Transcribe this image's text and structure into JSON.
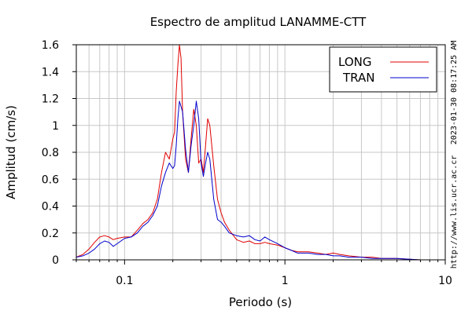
{
  "chart_data": {
    "type": "line",
    "title": "Espectro de amplitud LANAMME-CTT",
    "xlabel": "Periodo (s)",
    "ylabel": "Amplitud (cm/s)",
    "x_scale": "log",
    "xlim": [
      0.05,
      10
    ],
    "ylim": [
      0,
      1.6
    ],
    "grid": true,
    "legend_position": "top-right",
    "x_ticks": [
      {
        "value": 0.1,
        "label": "0.1"
      },
      {
        "value": 1,
        "label": "1"
      },
      {
        "value": 10,
        "label": "10"
      }
    ],
    "y_ticks": [
      {
        "value": 0,
        "label": "0"
      },
      {
        "value": 0.2,
        "label": "0.2"
      },
      {
        "value": 0.4,
        "label": "0.4"
      },
      {
        "value": 0.6,
        "label": "0.6"
      },
      {
        "value": 0.8,
        "label": "0.8"
      },
      {
        "value": 1.0,
        "label": "1"
      },
      {
        "value": 1.2,
        "label": "1.2"
      },
      {
        "value": 1.4,
        "label": "1.4"
      },
      {
        "value": 1.6,
        "label": "1.6"
      }
    ],
    "series": [
      {
        "name": "LONG",
        "color": "#e00000",
        "points": [
          [
            0.05,
            0.02
          ],
          [
            0.055,
            0.04
          ],
          [
            0.06,
            0.08
          ],
          [
            0.065,
            0.13
          ],
          [
            0.07,
            0.17
          ],
          [
            0.075,
            0.18
          ],
          [
            0.08,
            0.17
          ],
          [
            0.085,
            0.15
          ],
          [
            0.09,
            0.16
          ],
          [
            0.1,
            0.17
          ],
          [
            0.11,
            0.17
          ],
          [
            0.12,
            0.22
          ],
          [
            0.13,
            0.27
          ],
          [
            0.14,
            0.3
          ],
          [
            0.15,
            0.35
          ],
          [
            0.16,
            0.45
          ],
          [
            0.17,
            0.65
          ],
          [
            0.18,
            0.8
          ],
          [
            0.19,
            0.75
          ],
          [
            0.2,
            0.9
          ],
          [
            0.205,
            0.95
          ],
          [
            0.21,
            1.25
          ],
          [
            0.215,
            1.45
          ],
          [
            0.22,
            1.6
          ],
          [
            0.225,
            1.5
          ],
          [
            0.23,
            1.1
          ],
          [
            0.24,
            0.75
          ],
          [
            0.25,
            0.65
          ],
          [
            0.26,
            0.9
          ],
          [
            0.27,
            1.12
          ],
          [
            0.28,
            1.0
          ],
          [
            0.29,
            0.72
          ],
          [
            0.3,
            0.75
          ],
          [
            0.31,
            0.65
          ],
          [
            0.32,
            0.85
          ],
          [
            0.33,
            1.05
          ],
          [
            0.34,
            1.0
          ],
          [
            0.36,
            0.7
          ],
          [
            0.38,
            0.45
          ],
          [
            0.4,
            0.35
          ],
          [
            0.42,
            0.28
          ],
          [
            0.45,
            0.22
          ],
          [
            0.5,
            0.15
          ],
          [
            0.55,
            0.13
          ],
          [
            0.6,
            0.14
          ],
          [
            0.65,
            0.12
          ],
          [
            0.7,
            0.12
          ],
          [
            0.75,
            0.13
          ],
          [
            0.8,
            0.12
          ],
          [
            0.9,
            0.11
          ],
          [
            1.0,
            0.09
          ],
          [
            1.1,
            0.07
          ],
          [
            1.2,
            0.06
          ],
          [
            1.4,
            0.06
          ],
          [
            1.6,
            0.05
          ],
          [
            1.8,
            0.04
          ],
          [
            2.0,
            0.05
          ],
          [
            2.2,
            0.04
          ],
          [
            2.5,
            0.03
          ],
          [
            3.0,
            0.02
          ],
          [
            3.5,
            0.02
          ],
          [
            4.0,
            0.01
          ],
          [
            5.0,
            0.01
          ],
          [
            7.0,
            0.0
          ],
          [
            10.0,
            0.0
          ]
        ]
      },
      {
        "name": "TRAN",
        "color": "#0000cc",
        "points": [
          [
            0.05,
            0.02
          ],
          [
            0.055,
            0.03
          ],
          [
            0.06,
            0.05
          ],
          [
            0.065,
            0.08
          ],
          [
            0.07,
            0.12
          ],
          [
            0.075,
            0.14
          ],
          [
            0.08,
            0.13
          ],
          [
            0.085,
            0.1
          ],
          [
            0.09,
            0.12
          ],
          [
            0.1,
            0.16
          ],
          [
            0.11,
            0.17
          ],
          [
            0.12,
            0.2
          ],
          [
            0.13,
            0.25
          ],
          [
            0.14,
            0.28
          ],
          [
            0.15,
            0.33
          ],
          [
            0.16,
            0.4
          ],
          [
            0.17,
            0.55
          ],
          [
            0.18,
            0.65
          ],
          [
            0.19,
            0.72
          ],
          [
            0.2,
            0.68
          ],
          [
            0.205,
            0.7
          ],
          [
            0.21,
            0.85
          ],
          [
            0.215,
            1.05
          ],
          [
            0.22,
            1.18
          ],
          [
            0.23,
            1.1
          ],
          [
            0.24,
            0.82
          ],
          [
            0.25,
            0.65
          ],
          [
            0.26,
            0.85
          ],
          [
            0.27,
            1.0
          ],
          [
            0.28,
            1.18
          ],
          [
            0.29,
            1.05
          ],
          [
            0.3,
            0.72
          ],
          [
            0.31,
            0.62
          ],
          [
            0.32,
            0.72
          ],
          [
            0.33,
            0.8
          ],
          [
            0.34,
            0.75
          ],
          [
            0.36,
            0.45
          ],
          [
            0.38,
            0.3
          ],
          [
            0.4,
            0.28
          ],
          [
            0.42,
            0.25
          ],
          [
            0.45,
            0.2
          ],
          [
            0.5,
            0.18
          ],
          [
            0.55,
            0.17
          ],
          [
            0.6,
            0.18
          ],
          [
            0.65,
            0.15
          ],
          [
            0.7,
            0.14
          ],
          [
            0.75,
            0.17
          ],
          [
            0.8,
            0.15
          ],
          [
            0.9,
            0.12
          ],
          [
            1.0,
            0.09
          ],
          [
            1.1,
            0.07
          ],
          [
            1.2,
            0.05
          ],
          [
            1.4,
            0.05
          ],
          [
            1.6,
            0.04
          ],
          [
            1.8,
            0.04
          ],
          [
            2.0,
            0.03
          ],
          [
            2.2,
            0.03
          ],
          [
            2.5,
            0.02
          ],
          [
            3.0,
            0.02
          ],
          [
            3.5,
            0.01
          ],
          [
            4.0,
            0.01
          ],
          [
            5.0,
            0.01
          ],
          [
            7.0,
            0.0
          ],
          [
            10.0,
            0.0
          ]
        ]
      }
    ]
  },
  "side_labels": {
    "timestamp": "2023-01-30 08:17:25 AM",
    "url": "http://www.lis.ucr.ac.cr"
  }
}
